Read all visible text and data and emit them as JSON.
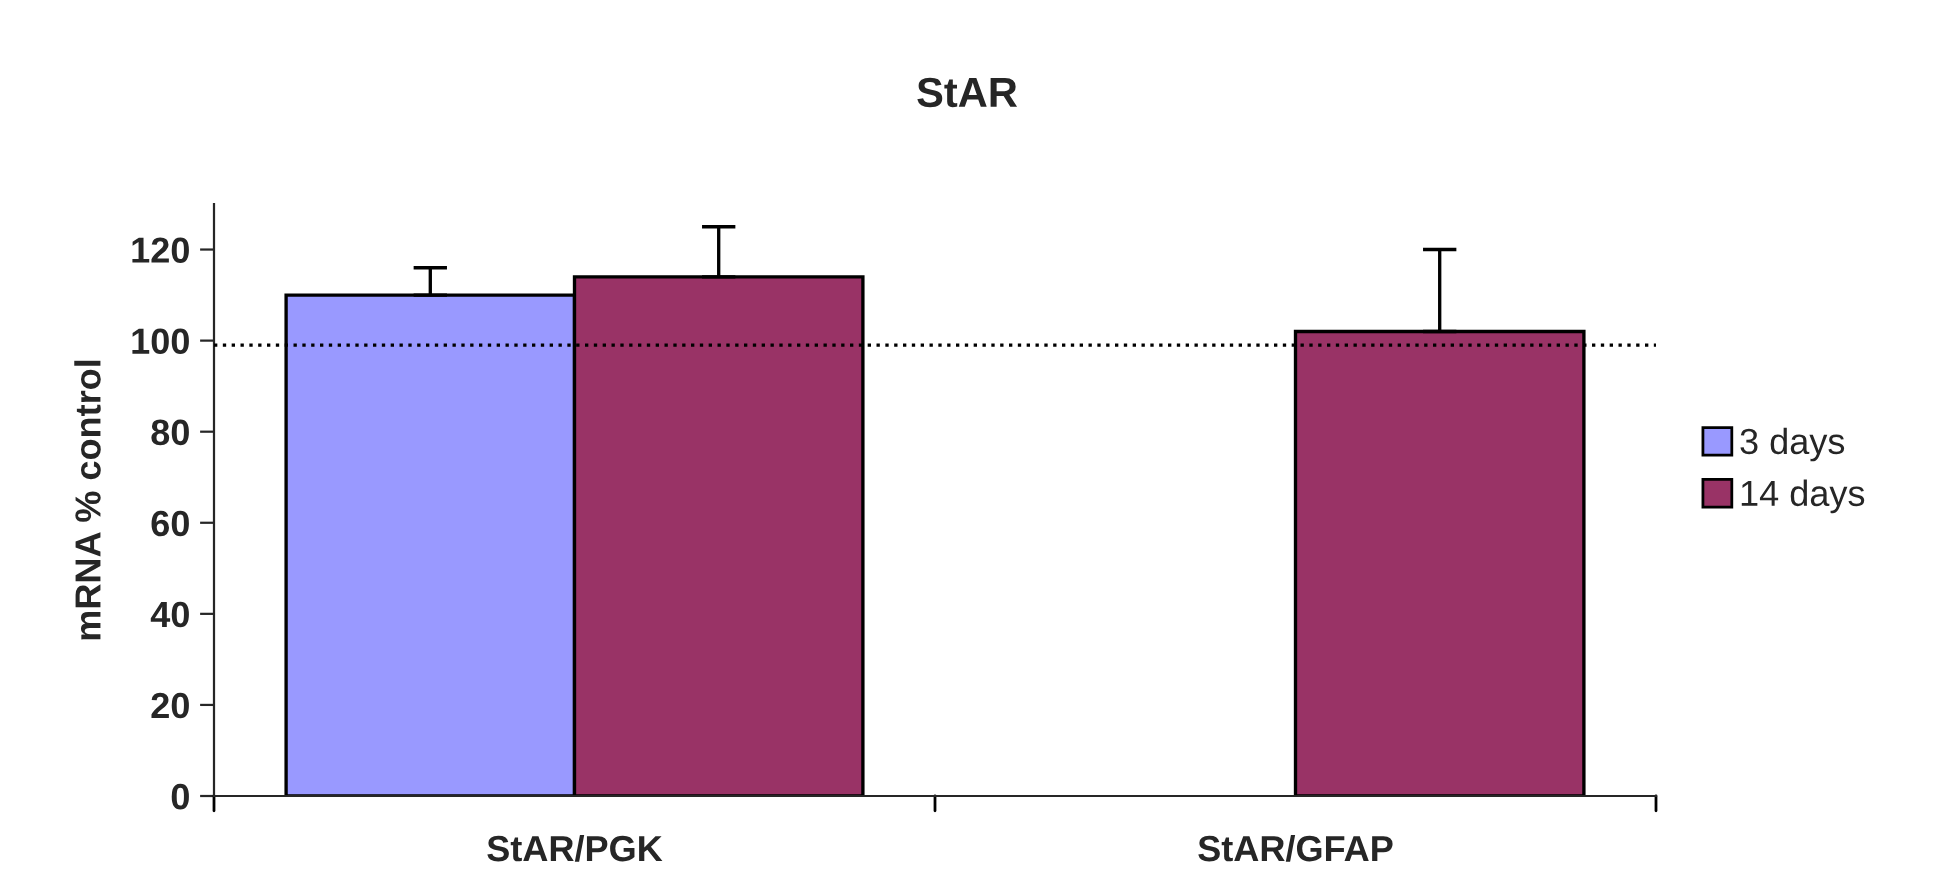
{
  "chart_data": {
    "type": "bar",
    "title": "StAR",
    "ylabel": "mRNA % control",
    "categories": [
      "StAR/PGK",
      "StAR/GFAP"
    ],
    "series": [
      {
        "name": "3 days",
        "color": "#9999ff",
        "values": [
          110,
          null
        ],
        "errors": [
          [
            110,
            116
          ],
          null
        ]
      },
      {
        "name": "14 days",
        "color": "#993366",
        "values": [
          114,
          102
        ],
        "errors": [
          [
            114,
            125
          ],
          [
            102,
            120
          ]
        ]
      }
    ],
    "ylim": [
      0,
      130
    ],
    "yticks": [
      0,
      20,
      40,
      60,
      80,
      100,
      120
    ],
    "ref_lines": [
      {
        "axis": "y",
        "value": 99,
        "line_style": "dotted",
        "color": "#000000"
      }
    ],
    "grid": false,
    "legend": "right"
  }
}
